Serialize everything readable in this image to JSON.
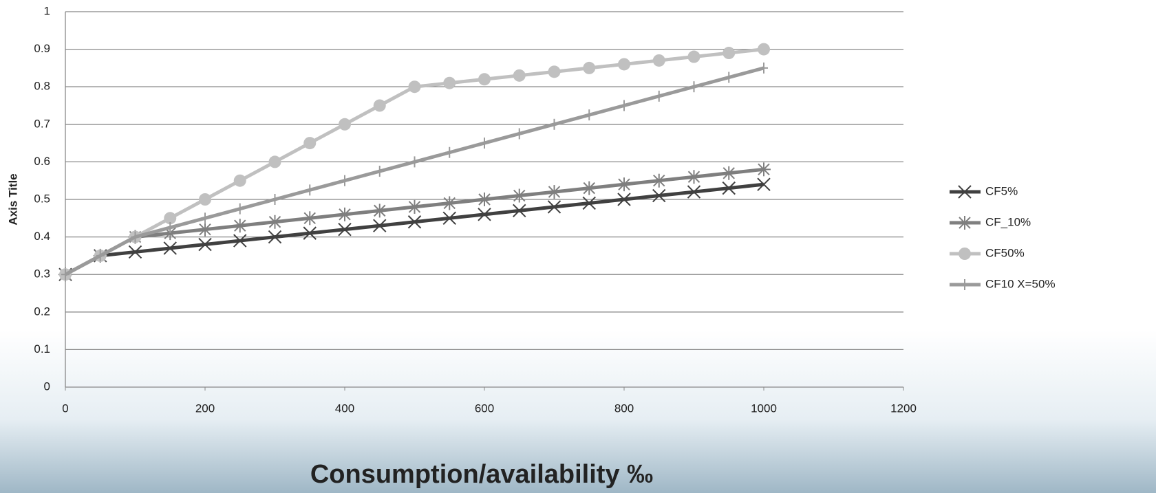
{
  "chart_data": {
    "type": "line",
    "x_label": "Consumption/availability ‰",
    "y_label": "Axis Title",
    "x": [
      0,
      50,
      100,
      150,
      200,
      250,
      300,
      350,
      400,
      450,
      500,
      550,
      600,
      650,
      700,
      750,
      800,
      850,
      900,
      950,
      1000
    ],
    "series": [
      {
        "name": "CF5%",
        "color": "#404040",
        "marker": "x",
        "values": [
          0.3,
          0.35,
          0.36,
          0.37,
          0.38,
          0.39,
          0.4,
          0.41,
          0.42,
          0.43,
          0.44,
          0.45,
          0.46,
          0.47,
          0.48,
          0.49,
          0.5,
          0.51,
          0.52,
          0.53,
          0.54
        ]
      },
      {
        "name": "CF_10%",
        "color": "#7f7f7f",
        "marker": "asterisk",
        "values": [
          0.3,
          0.35,
          0.4,
          0.41,
          0.42,
          0.43,
          0.44,
          0.45,
          0.46,
          0.47,
          0.48,
          0.49,
          0.5,
          0.51,
          0.52,
          0.53,
          0.54,
          0.55,
          0.56,
          0.57,
          0.58
        ]
      },
      {
        "name": "CF50%",
        "color": "#c0c0c0",
        "marker": "circle",
        "values": [
          0.3,
          0.35,
          0.4,
          0.45,
          0.5,
          0.55,
          0.6,
          0.65,
          0.7,
          0.75,
          0.8,
          0.81,
          0.82,
          0.83,
          0.84,
          0.85,
          0.86,
          0.87,
          0.88,
          0.89,
          0.9
        ]
      },
      {
        "name": "CF10 X=50%",
        "color": "#9a9a9a",
        "marker": "plus",
        "values": [
          0.3,
          0.35,
          0.4,
          0.425,
          0.45,
          0.475,
          0.5,
          0.525,
          0.55,
          0.575,
          0.6,
          0.625,
          0.65,
          0.675,
          0.7,
          0.725,
          0.75,
          0.775,
          0.8,
          0.825,
          0.85
        ]
      }
    ],
    "xlim": [
      0,
      1200
    ],
    "xticks": [
      0,
      200,
      400,
      600,
      800,
      1000,
      1200
    ],
    "ylim": [
      0,
      1
    ],
    "yticks": [
      0,
      0.1,
      0.2,
      0.3,
      0.4,
      0.5,
      0.6,
      0.7,
      0.8,
      0.9,
      1
    ],
    "grid": true,
    "legend": "right"
  }
}
